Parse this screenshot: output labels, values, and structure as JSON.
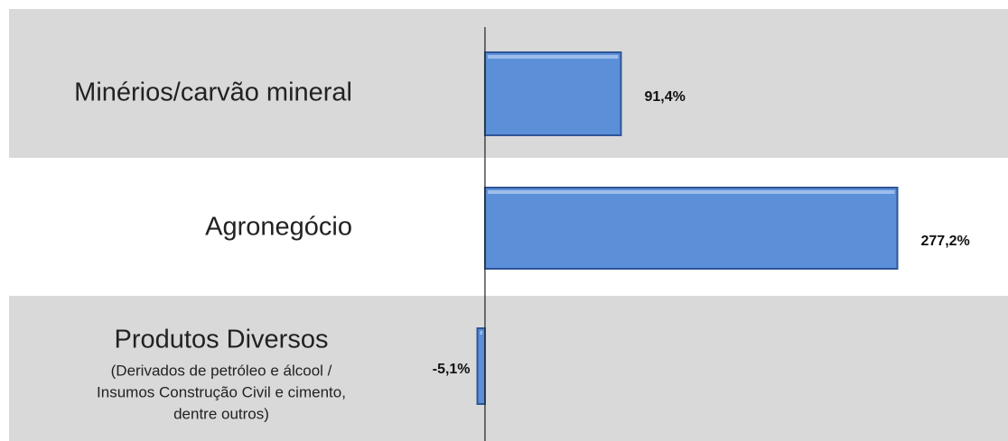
{
  "chart_data": {
    "type": "hbar",
    "categories": [
      "Minérios/carvão mineral",
      "Agronegócio",
      "Produtos Diversos"
    ],
    "category_notes": [
      null,
      null,
      [
        "(Derivados de petróleo e álcool /",
        "Insumos Construção Civil e cimento,",
        "dentre outros)"
      ]
    ],
    "values": [
      91.4,
      277.2,
      -5.1
    ],
    "value_labels": [
      "91,4%",
      "277,2%",
      "-5,1%"
    ],
    "color": "#5b8fd8",
    "xlim": [
      -20,
      320
    ]
  }
}
